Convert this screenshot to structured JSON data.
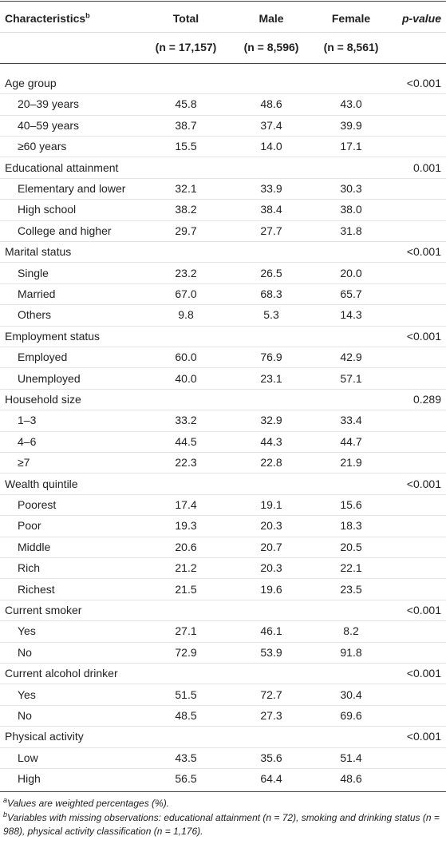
{
  "table": {
    "header": [
      {
        "text": "Characteristics",
        "sup": "b"
      },
      {
        "text": "Total"
      },
      {
        "text": "Male"
      },
      {
        "text": "Female"
      },
      {
        "text": "p-value"
      }
    ],
    "counts": [
      "(n = 17,157)",
      "(n = 8,596)",
      "(n = 8,561)"
    ],
    "sections": [
      {
        "label": "Age group",
        "p": "<0.001",
        "rows": [
          [
            "20–39 years",
            "45.8",
            "48.6",
            "43.0"
          ],
          [
            "40–59 years",
            "38.7",
            "37.4",
            "39.9"
          ],
          [
            "≥60 years",
            "15.5",
            "14.0",
            "17.1"
          ]
        ]
      },
      {
        "label": "Educational attainment",
        "p": "0.001",
        "rows": [
          [
            "Elementary and lower",
            "32.1",
            "33.9",
            "30.3"
          ],
          [
            "High school",
            "38.2",
            "38.4",
            "38.0"
          ],
          [
            "College and higher",
            "29.7",
            "27.7",
            "31.8"
          ]
        ]
      },
      {
        "label": "Marital status",
        "p": "<0.001",
        "rows": [
          [
            "Single",
            "23.2",
            "26.5",
            "20.0"
          ],
          [
            "Married",
            "67.0",
            "68.3",
            "65.7"
          ],
          [
            "Others",
            "9.8",
            "5.3",
            "14.3"
          ]
        ]
      },
      {
        "label": "Employment status",
        "p": "<0.001",
        "rows": [
          [
            "Employed",
            "60.0",
            "76.9",
            "42.9"
          ],
          [
            "Unemployed",
            "40.0",
            "23.1",
            "57.1"
          ]
        ]
      },
      {
        "label": "Household size",
        "p": "0.289",
        "rows": [
          [
            "1–3",
            "33.2",
            "32.9",
            "33.4"
          ],
          [
            "4–6",
            "44.5",
            "44.3",
            "44.7"
          ],
          [
            "≥7",
            "22.3",
            "22.8",
            "21.9"
          ]
        ]
      },
      {
        "label": "Wealth quintile",
        "p": "<0.001",
        "rows": [
          [
            "Poorest",
            "17.4",
            "19.1",
            "15.6"
          ],
          [
            "Poor",
            "19.3",
            "20.3",
            "18.3"
          ],
          [
            "Middle",
            "20.6",
            "20.7",
            "20.5"
          ],
          [
            "Rich",
            "21.2",
            "20.3",
            "22.1"
          ],
          [
            "Richest",
            "21.5",
            "19.6",
            "23.5"
          ]
        ]
      },
      {
        "label": "Current smoker",
        "p": "<0.001",
        "rows": [
          [
            "Yes",
            "27.1",
            "46.1",
            "8.2"
          ],
          [
            "No",
            "72.9",
            "53.9",
            "91.8"
          ]
        ]
      },
      {
        "label": "Current alcohol drinker",
        "p": "<0.001",
        "rows": [
          [
            "Yes",
            "51.5",
            "72.7",
            "30.4"
          ],
          [
            "No",
            "48.5",
            "27.3",
            "69.6"
          ]
        ]
      },
      {
        "label": "Physical activity",
        "p": "<0.001",
        "rows": [
          [
            "Low",
            "43.5",
            "35.6",
            "51.4"
          ],
          [
            "High",
            "56.5",
            "64.4",
            "48.6"
          ]
        ]
      }
    ],
    "footnotes": [
      {
        "mark": "a",
        "text": "Values are weighted percentages (%)."
      },
      {
        "mark": "b",
        "text": "Variables with missing observations: educational attainment (n = 72), smoking and drinking status (n = 988), physical activity classification (n = 1,176)."
      }
    ]
  }
}
